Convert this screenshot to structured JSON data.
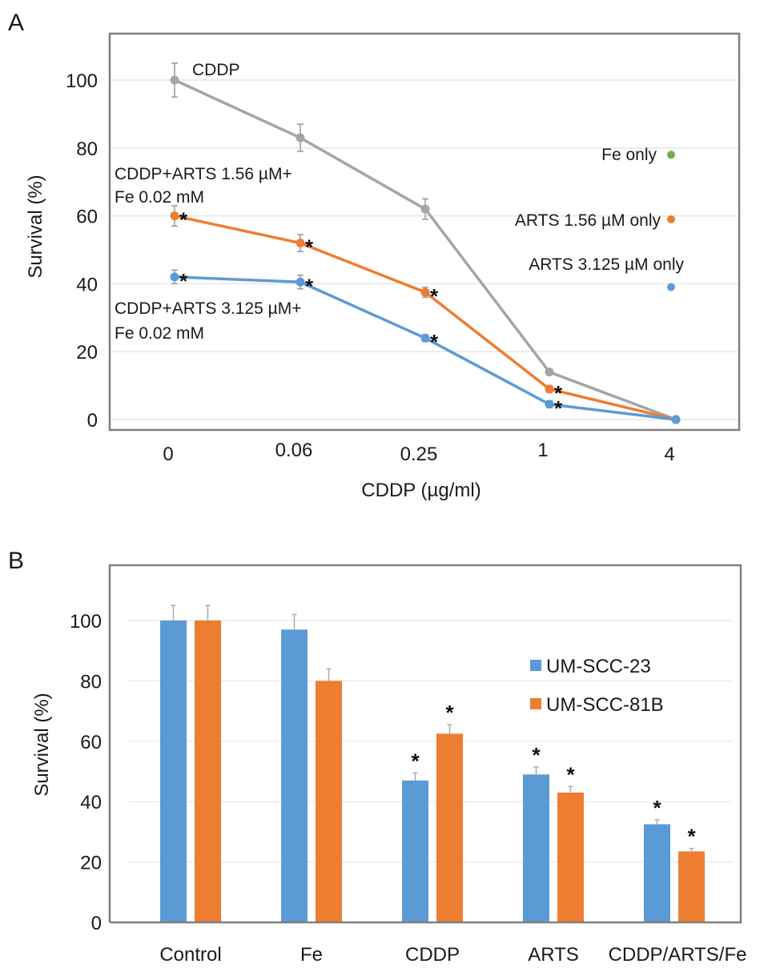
{
  "chart_data": [
    {
      "panel": "A",
      "type": "line",
      "xlabel": "CDDP (µg/ml)",
      "ylabel": "Survival (%)",
      "categories": [
        "0",
        "0.06",
        "0.25",
        "1",
        "4"
      ],
      "ylim": [
        0,
        110
      ],
      "yticks": [
        0,
        20,
        40,
        60,
        80,
        100
      ],
      "grid": true,
      "series": [
        {
          "name": "CDDP",
          "color": "#a5a5a5",
          "values": [
            100,
            83,
            62,
            14,
            0
          ],
          "errors": [
            5,
            4,
            3,
            0,
            0
          ],
          "significant": [
            false,
            false,
            false,
            false,
            false
          ]
        },
        {
          "name": "CDDP+ARTS 1.56 µM+ Fe 0.02 mM",
          "color": "#ed7d31",
          "values": [
            60,
            52,
            37.5,
            9,
            0
          ],
          "errors": [
            3,
            2.5,
            1.5,
            1,
            0
          ],
          "significant": [
            true,
            true,
            true,
            true,
            false
          ]
        },
        {
          "name": "CDDP+ARTS 3.125 µM+ Fe 0.02 mM",
          "color": "#5b9bd5",
          "values": [
            42,
            40.5,
            24,
            4.5,
            0
          ],
          "errors": [
            2,
            2,
            1,
            1,
            0
          ],
          "significant": [
            true,
            true,
            true,
            true,
            false
          ]
        }
      ],
      "single_points": [
        {
          "name": "Fe only",
          "color": "#70ad47",
          "value": 78
        },
        {
          "name": "ARTS 1.56 µM only",
          "color": "#ed7d31",
          "value": 59
        },
        {
          "name": "ARTS 3.125 µM only",
          "color": "#5b9bd5",
          "value": 39
        }
      ],
      "annotations": {
        "cddp": "CDDP",
        "orange_line1": "CDDP+ARTS 1.56 µM+",
        "orange_line2": "Fe 0.02 mM",
        "blue_line1": "CDDP+ARTS 3.125 µM+",
        "blue_line2": "Fe 0.02 mM",
        "fe_only": "Fe only",
        "arts156_only": "ARTS 1.56 µM only",
        "arts3125_only": "ARTS 3.125 µM only"
      }
    },
    {
      "panel": "B",
      "type": "bar",
      "xlabel": "",
      "ylabel": "Survival (%)",
      "categories": [
        "Control",
        "Fe",
        "CDDP",
        "ARTS",
        "CDDP/ARTS/Fe"
      ],
      "ylim": [
        0,
        110
      ],
      "yticks": [
        0,
        20,
        40,
        60,
        80,
        100
      ],
      "grid": true,
      "legend": "right",
      "series": [
        {
          "name": "UM-SCC-23",
          "color": "#5b9bd5",
          "values": [
            100,
            97,
            47,
            49,
            32.5
          ],
          "errors": [
            5,
            5,
            2.5,
            2.5,
            1.5
          ],
          "significant": [
            false,
            false,
            true,
            true,
            true
          ]
        },
        {
          "name": "UM-SCC-81B",
          "color": "#ed7d31",
          "values": [
            100,
            80,
            62.5,
            43,
            23.5
          ],
          "errors": [
            5,
            4,
            3,
            2,
            1
          ],
          "significant": [
            false,
            false,
            true,
            true,
            true
          ]
        }
      ]
    }
  ],
  "labels": {
    "panel_a": "A",
    "panel_b": "B",
    "star": "*"
  }
}
